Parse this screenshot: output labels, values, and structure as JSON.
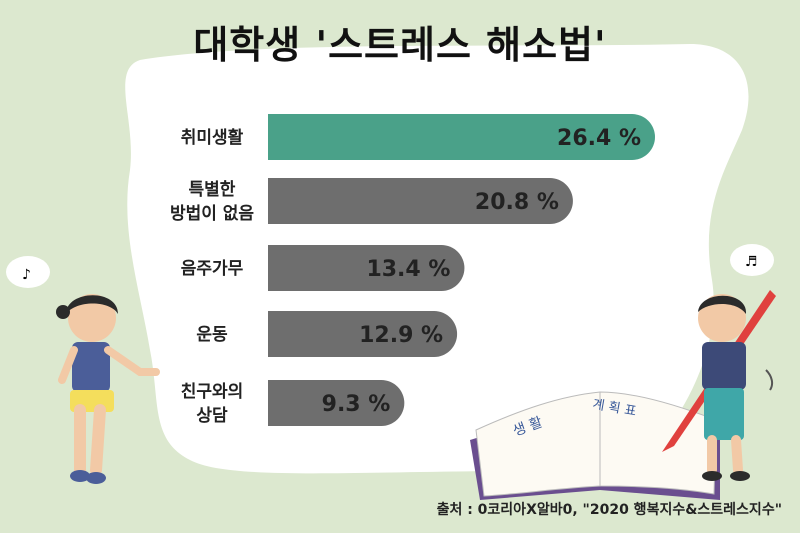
{
  "page": {
    "title": "대학생 '스트레스 해소법'",
    "source": "출처 : 0코리아X알바0, \"2020 행복지수&스트레스지수\""
  },
  "notebook": {
    "left_page_text": "생 활",
    "right_page_text": "계 획 표"
  },
  "colors": {
    "background": "#dce8cf",
    "panel": "#ffffff",
    "highlight_bar": "#4aa189",
    "bar": "#6e6e6e"
  },
  "chart_data": {
    "type": "bar",
    "orientation": "horizontal",
    "categories": [
      [
        "취미생활"
      ],
      [
        "특별한",
        "방법이 없음"
      ],
      [
        "음주가무"
      ],
      [
        "운동"
      ],
      [
        "친구와의",
        "상담"
      ]
    ],
    "values": [
      26.4,
      20.8,
      13.4,
      12.9,
      9.3
    ],
    "value_labels": [
      "26.4 %",
      "20.8 %",
      "13.4 %",
      "12.9 %",
      "9.3 %"
    ],
    "unit": "%",
    "xlim": [
      0,
      26.4
    ],
    "highlight_index": 0
  }
}
